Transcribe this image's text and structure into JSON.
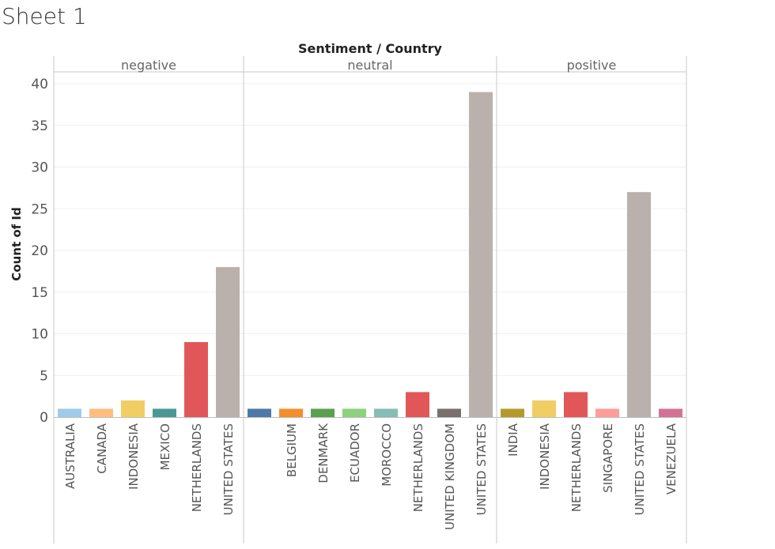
{
  "sheet_title": "Sheet 1",
  "chart_data": {
    "type": "bar",
    "title": "Sentiment / Country",
    "ylabel": "Count of Id",
    "ylim": [
      0,
      41
    ],
    "yticks": [
      0,
      5,
      10,
      15,
      20,
      25,
      30,
      35,
      40
    ],
    "grid": true,
    "panels": [
      {
        "name": "negative",
        "categories": [
          "AUSTRALIA",
          "CANADA",
          "INDONESIA",
          "MEXICO",
          "NETHERLANDS",
          "UNITED STATES"
        ],
        "values": [
          1,
          1,
          2,
          1,
          9,
          18
        ],
        "colors": [
          "#a0cbe8",
          "#ffbe7d",
          "#f1ce63",
          "#499894",
          "#e15759",
          "#bab0ac"
        ]
      },
      {
        "name": "neutral",
        "categories": [
          "",
          "BELGIUM",
          "DENMARK",
          "ECUADOR",
          "MOROCCO",
          "NETHERLANDS",
          "UNITED KINGDOM",
          "UNITED STATES"
        ],
        "values": [
          1,
          1,
          1,
          1,
          1,
          3,
          1,
          39
        ],
        "colors": [
          "#4e79a7",
          "#f28e2b",
          "#59a14f",
          "#8cd17d",
          "#86bcb6",
          "#e15759",
          "#79706e",
          "#bab0ac"
        ]
      },
      {
        "name": "positive",
        "categories": [
          "INDIA",
          "INDONESIA",
          "NETHERLANDS",
          "SINGAPORE",
          "UNITED STATES",
          "VENEZUELA"
        ],
        "values": [
          1,
          2,
          3,
          1,
          27,
          1
        ],
        "colors": [
          "#b6992d",
          "#f1ce63",
          "#e15759",
          "#ff9d9a",
          "#bab0ac",
          "#d37295"
        ]
      }
    ]
  }
}
